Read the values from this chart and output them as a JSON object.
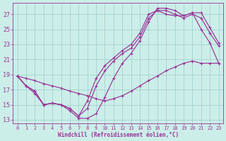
{
  "bg_color": "#cceee8",
  "line_color": "#993399",
  "grid_color": "#99cccc",
  "text_color": "#993399",
  "xlabel": "Windchill (Refroidissement éolien,°C)",
  "xlim_min": -0.5,
  "xlim_max": 23.5,
  "ylim_min": 12.5,
  "ylim_max": 28.5,
  "yticks": [
    13,
    15,
    17,
    19,
    21,
    23,
    25,
    27
  ],
  "xticks": [
    0,
    1,
    2,
    3,
    4,
    5,
    6,
    7,
    8,
    9,
    10,
    11,
    12,
    13,
    14,
    15,
    16,
    17,
    18,
    19,
    20,
    21,
    22,
    23
  ],
  "curve_A": [
    18.8,
    17.5,
    16.5,
    15.0,
    15.2,
    15.0,
    14.2,
    13.2,
    13.2,
    13.8,
    16.0,
    18.5,
    20.5,
    21.8,
    23.5,
    26.0,
    27.8,
    27.8,
    27.5,
    26.8,
    27.2,
    27.2,
    25.2,
    23.2
  ],
  "curve_B": [
    18.8,
    17.5,
    16.8,
    15.0,
    15.2,
    15.0,
    14.5,
    13.5,
    14.5,
    17.5,
    19.5,
    20.8,
    21.8,
    22.5,
    24.0,
    26.5,
    27.5,
    27.5,
    27.0,
    26.5,
    27.0,
    26.5,
    24.5,
    22.8
  ],
  "curve_C": [
    18.8,
    17.5,
    16.8,
    15.0,
    15.2,
    15.0,
    14.5,
    13.5,
    15.5,
    18.5,
    20.2,
    21.2,
    22.2,
    23.0,
    24.5,
    27.0,
    27.5,
    27.0,
    26.8,
    26.8,
    27.2,
    25.0,
    23.2,
    20.5
  ],
  "curve_D": [
    18.8,
    18.5,
    18.2,
    17.8,
    17.5,
    17.2,
    16.8,
    16.5,
    16.2,
    15.8,
    15.5,
    15.8,
    16.2,
    16.8,
    17.5,
    18.2,
    18.8,
    19.5,
    20.0,
    20.5,
    20.8,
    20.5,
    20.5,
    20.5
  ]
}
